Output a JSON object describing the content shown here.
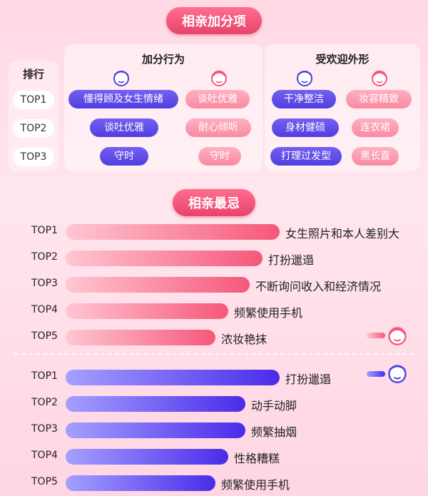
{
  "section1": {
    "title": "相亲加分项",
    "rank_header": "排行",
    "ranks": [
      "TOP1",
      "TOP2",
      "TOP3"
    ],
    "groupA": {
      "title": "加分行为",
      "male": [
        "懂得顾及女生情绪",
        "谈吐优雅",
        "守时"
      ],
      "female": [
        "谈吐优雅",
        "耐心倾听",
        "守时"
      ]
    },
    "groupB": {
      "title": "受欢迎外形",
      "male": [
        "干净整洁",
        "身材健硕",
        "打理过发型"
      ],
      "female": [
        "妆容精致",
        "连衣裙",
        "黑长直"
      ]
    }
  },
  "section2": {
    "title": "相亲最忌",
    "female_list": [
      {
        "rank": "TOP1",
        "text": "女生照片和本人差别大",
        "level": 1.0
      },
      {
        "rank": "TOP2",
        "text": "打扮邋遢",
        "level": 0.92
      },
      {
        "rank": "TOP3",
        "text": "不断询问收入和经济情况",
        "level": 0.86
      },
      {
        "rank": "TOP4",
        "text": "频繁使用手机",
        "level": 0.76
      },
      {
        "rank": "TOP5",
        "text": "浓妆艳抹",
        "level": 0.7
      }
    ],
    "male_list": [
      {
        "rank": "TOP1",
        "text": "打扮邋遢",
        "level": 1.0
      },
      {
        "rank": "TOP2",
        "text": "动手动脚",
        "level": 0.84
      },
      {
        "rank": "TOP3",
        "text": "频繁抽烟",
        "level": 0.84
      },
      {
        "rank": "TOP4",
        "text": "性格糟糕",
        "level": 0.76
      },
      {
        "rank": "TOP5",
        "text": "频繁使用手机",
        "level": 0.7
      }
    ]
  },
  "colors": {
    "male": "#4f3fe0",
    "female": "#f6577a"
  },
  "icons": {
    "male": "male-face-icon",
    "female": "female-face-icon"
  }
}
